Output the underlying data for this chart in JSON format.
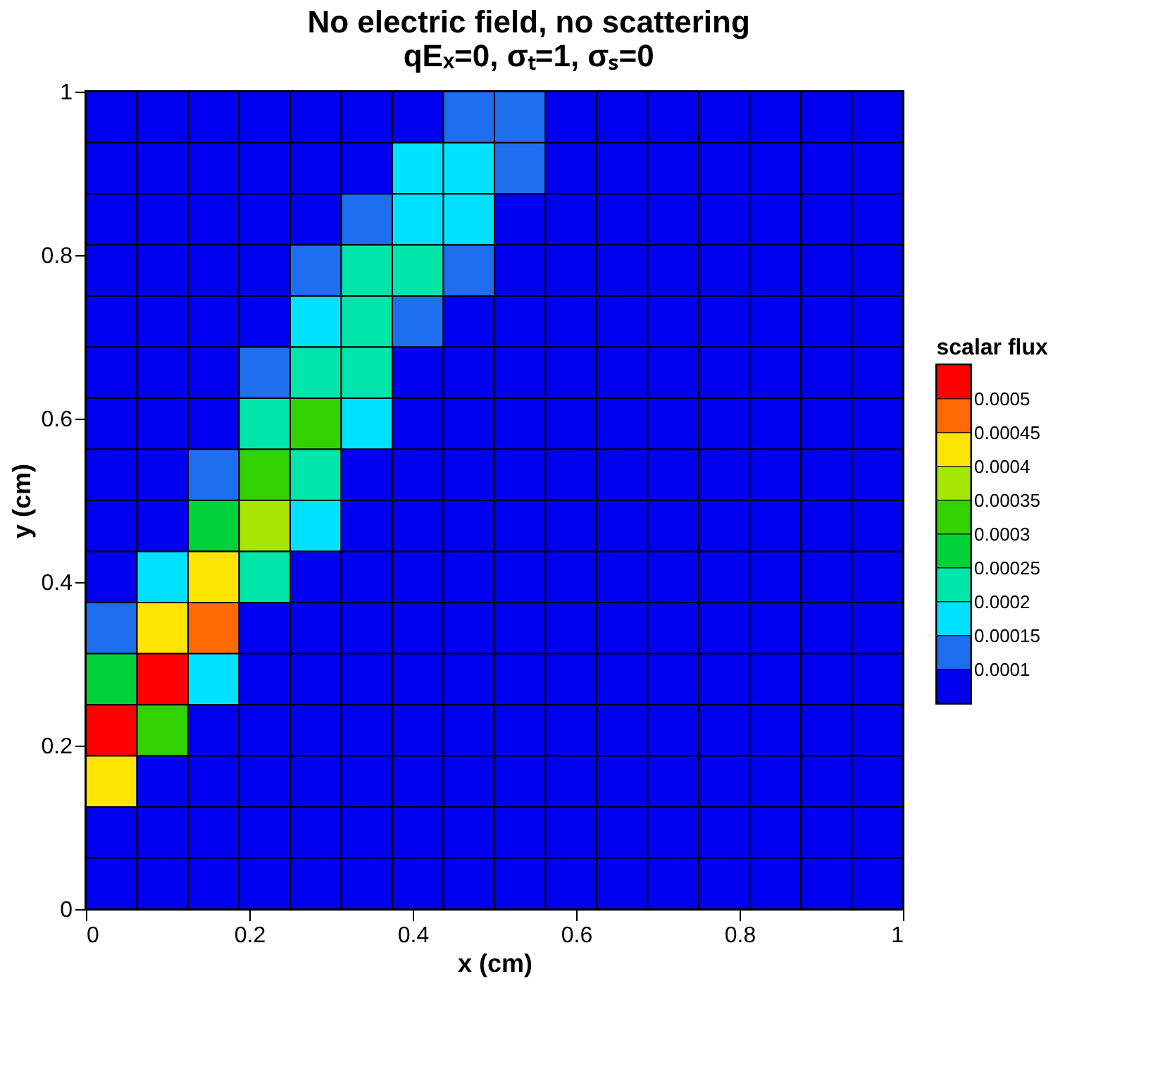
{
  "chart_data": {
    "type": "heatmap",
    "title": [
      "No electric field, no scattering",
      "qEₓ=0, σₜ=1, σₛ=0"
    ],
    "xlabel": "x (cm)",
    "ylabel": "y (cm)",
    "clabel": "scalar flux",
    "xlim": [
      0,
      1
    ],
    "ylim": [
      0,
      1
    ],
    "xticks": [
      0,
      0.2,
      0.4,
      0.6,
      0.8,
      1
    ],
    "yticks": [
      0,
      0.2,
      0.4,
      0.6,
      0.8,
      1
    ],
    "clim": [
      5e-05,
      0.00055
    ],
    "cticks": [
      0.0001,
      0.00015,
      0.0002,
      0.00025,
      0.0003,
      0.00035,
      0.0004,
      0.00045,
      0.0005
    ],
    "colors": [
      "#0000f0",
      "#1e6ef0",
      "#00e1ff",
      "#00e6aa",
      "#00d23c",
      "#32d200",
      "#a6e600",
      "#ffe400",
      "#ff6a00",
      "#ff0000"
    ],
    "cells": [
      [
        5e-05,
        5e-05,
        5e-05,
        5e-05,
        5e-05,
        5e-05,
        5e-05,
        0.00013,
        0.00012,
        5e-05,
        5e-05,
        5e-05,
        5e-05,
        5e-05,
        5e-05,
        5e-05
      ],
      [
        5e-05,
        5e-05,
        5e-05,
        5e-05,
        5e-05,
        5e-05,
        0.00015,
        0.00017,
        0.00012,
        5e-05,
        5e-05,
        5e-05,
        5e-05,
        5e-05,
        5e-05,
        5e-05
      ],
      [
        5e-05,
        5e-05,
        5e-05,
        5e-05,
        5e-05,
        0.00013,
        0.00018,
        0.00015,
        5e-05,
        5e-05,
        5e-05,
        5e-05,
        5e-05,
        5e-05,
        5e-05,
        5e-05
      ],
      [
        5e-05,
        5e-05,
        5e-05,
        5e-05,
        0.00011,
        0.0002,
        0.0002,
        0.00011,
        5e-05,
        5e-05,
        5e-05,
        5e-05,
        5e-05,
        5e-05,
        5e-05,
        5e-05
      ],
      [
        5e-05,
        5e-05,
        5e-05,
        5e-05,
        0.00017,
        0.0002,
        0.00013,
        5e-05,
        5e-05,
        5e-05,
        5e-05,
        5e-05,
        5e-05,
        5e-05,
        5e-05,
        5e-05
      ],
      [
        5e-05,
        5e-05,
        5e-05,
        0.00012,
        0.00024,
        0.0002,
        5e-05,
        5e-05,
        5e-05,
        5e-05,
        5e-05,
        5e-05,
        5e-05,
        5e-05,
        5e-05,
        5e-05
      ],
      [
        5e-05,
        5e-05,
        5e-05,
        0.00022,
        0.0003,
        0.00015,
        5e-05,
        5e-05,
        5e-05,
        5e-05,
        5e-05,
        5e-05,
        5e-05,
        5e-05,
        5e-05,
        5e-05
      ],
      [
        5e-05,
        5e-05,
        0.00013,
        0.0003,
        0.00024,
        5e-05,
        5e-05,
        5e-05,
        5e-05,
        5e-05,
        5e-05,
        5e-05,
        5e-05,
        5e-05,
        5e-05,
        5e-05
      ],
      [
        5e-05,
        5e-05,
        0.00028,
        0.00038,
        0.00015,
        5e-05,
        5e-05,
        5e-05,
        5e-05,
        5e-05,
        5e-05,
        5e-05,
        5e-05,
        5e-05,
        5e-05,
        5e-05
      ],
      [
        5e-05,
        0.00017,
        0.0004,
        0.00022,
        5e-05,
        5e-05,
        5e-05,
        5e-05,
        5e-05,
        5e-05,
        5e-05,
        5e-05,
        5e-05,
        5e-05,
        5e-05,
        5e-05
      ],
      [
        0.00012,
        0.00042,
        0.00045,
        5e-05,
        5e-05,
        5e-05,
        5e-05,
        5e-05,
        5e-05,
        5e-05,
        5e-05,
        5e-05,
        5e-05,
        5e-05,
        5e-05,
        5e-05
      ],
      [
        0.00025,
        0.0005,
        0.00015,
        5e-05,
        5e-05,
        5e-05,
        5e-05,
        5e-05,
        5e-05,
        5e-05,
        5e-05,
        5e-05,
        5e-05,
        5e-05,
        5e-05,
        5e-05
      ],
      [
        0.00052,
        0.00032,
        5e-05,
        5e-05,
        5e-05,
        5e-05,
        5e-05,
        5e-05,
        5e-05,
        5e-05,
        5e-05,
        5e-05,
        5e-05,
        5e-05,
        5e-05,
        5e-05
      ],
      [
        0.0004,
        5e-05,
        5e-05,
        5e-05,
        5e-05,
        5e-05,
        5e-05,
        5e-05,
        5e-05,
        5e-05,
        5e-05,
        5e-05,
        5e-05,
        5e-05,
        5e-05,
        5e-05
      ],
      [
        5e-05,
        5e-05,
        5e-05,
        5e-05,
        5e-05,
        5e-05,
        5e-05,
        5e-05,
        5e-05,
        5e-05,
        5e-05,
        5e-05,
        5e-05,
        5e-05,
        5e-05,
        5e-05
      ],
      [
        5e-05,
        5e-05,
        5e-05,
        5e-05,
        5e-05,
        5e-05,
        5e-05,
        5e-05,
        5e-05,
        5e-05,
        5e-05,
        5e-05,
        5e-05,
        5e-05,
        5e-05,
        5e-05
      ]
    ]
  }
}
